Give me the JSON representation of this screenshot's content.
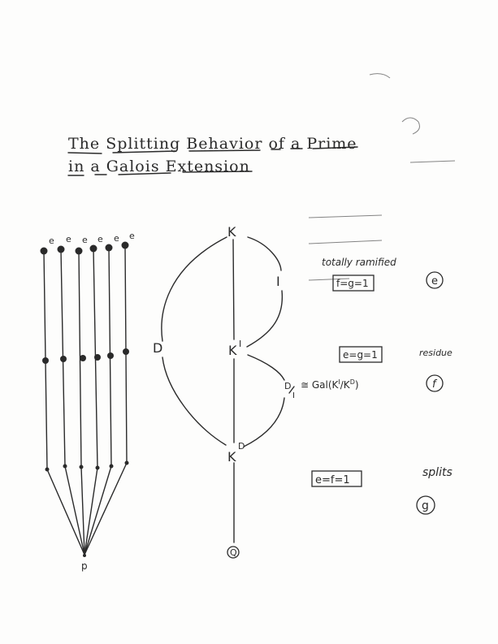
{
  "title": {
    "line1": "The Splitting Behavior of a Prime",
    "line2": "in a Galois Extension"
  },
  "left_tree": {
    "prime_label": "p",
    "top_labels": [
      "e",
      "e",
      "e",
      "e",
      "e",
      "e"
    ]
  },
  "field_tower": {
    "top": "K",
    "inertia_field": "K",
    "inertia_sup": "I",
    "decomposition_field": "K",
    "decomposition_sup": "D",
    "base": "Q",
    "inertia_group": "I",
    "decomposition_group": "D",
    "quotient_num": "D",
    "quotient_den": "I",
    "quotient_iso": "≅ Gal(K",
    "quotient_iso_sup1": "I",
    "quotient_iso_mid": "/K",
    "quotient_iso_sup2": "D",
    "quotient_iso_end": ")"
  },
  "annotations": {
    "totally_ramified": "totally ramified",
    "totally_ramified_box": "f=g=1",
    "totally_ramified_circle": "e",
    "residue": "residue",
    "residue_box": "e=g=1",
    "residue_circle": "f",
    "splits": "splits",
    "splits_box": "e=f=1",
    "splits_circle": "g"
  },
  "colors": {
    "ink": "#2b2b2b",
    "paper": "#fdfdfc"
  }
}
